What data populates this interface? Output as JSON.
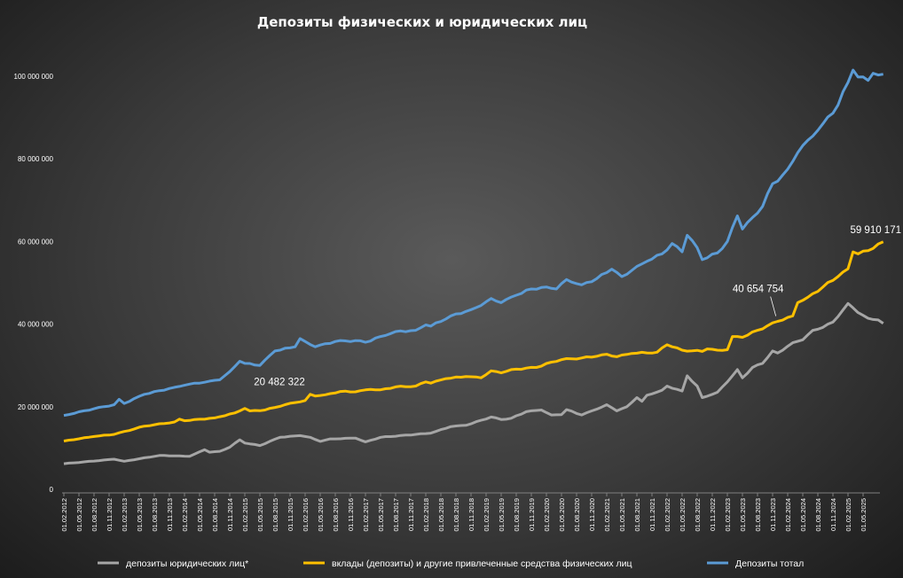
{
  "chart_data": {
    "type": "line",
    "title": "Депозиты физических и юридических лиц",
    "ylim": [
      0,
      100000000
    ],
    "yticks": [
      {
        "value": 0,
        "label": "0"
      },
      {
        "value": 20000000,
        "label": "20 000 000"
      },
      {
        "value": 40000000,
        "label": "40 000 000"
      },
      {
        "value": 60000000,
        "label": "60 000 000"
      },
      {
        "value": 80000000,
        "label": "80 000 000"
      },
      {
        "value": 100000000,
        "label": "100 000 000"
      }
    ],
    "grid": false,
    "legend": "bottom",
    "x_start": "2012-02-01",
    "n_months": 163,
    "xtick_labels": [
      "01.02.2012",
      "01.05.2012",
      "01.08.2012",
      "01.11.2012",
      "01.02.2013",
      "01.05.2013",
      "01.08.2013",
      "01.11.2013",
      "01.02.2014",
      "01.05.2014",
      "01.08.2014",
      "01.11.2014",
      "01.02.2015",
      "01.05.2015",
      "01.08.2015",
      "01.11.2015",
      "01.02.2016",
      "01.05.2016",
      "01.08.2016",
      "01.11.2016",
      "01.02.2017",
      "01.05.2017",
      "01.08.2017",
      "01.11.2017",
      "01.02.2018",
      "01.05.2018",
      "01.08.2018",
      "01.11.2018",
      "01.02.2019",
      "01.05.2019",
      "01.08.2019",
      "01.11.2019",
      "01.02.2020",
      "01.05.2020",
      "01.08.2020",
      "01.11.2020",
      "01.02.2021",
      "01.05.2021",
      "01.08.2021",
      "01.11.2021",
      "01.02.2022",
      "01.05.2022",
      "01.08.2022",
      "01.11.2022",
      "01.02.2023",
      "01.05.2023",
      "01.08.2023",
      "01.11.2023",
      "01.02.2024",
      "01.05.2024",
      "01.08.2024",
      "01.11.2024",
      "01.02.2025",
      "01.05.2025"
    ],
    "series": [
      {
        "name": "депозиты юридических лиц*",
        "color": "#a6a6a6",
        "anchors": [
          [
            "2012-02-01",
            6200000
          ],
          [
            "2012-12-01",
            7300000
          ],
          [
            "2013-02-01",
            6800000
          ],
          [
            "2013-09-01",
            8200000
          ],
          [
            "2014-03-01",
            8000000
          ],
          [
            "2014-06-01",
            9600000
          ],
          [
            "2014-07-01",
            9000000
          ],
          [
            "2014-09-01",
            9200000
          ],
          [
            "2014-11-01",
            10200000
          ],
          [
            "2015-01-01",
            12000000
          ],
          [
            "2015-02-01",
            11200000
          ],
          [
            "2015-05-01",
            10600000
          ],
          [
            "2015-09-01",
            12600000
          ],
          [
            "2016-01-01",
            13000000
          ],
          [
            "2016-03-01",
            12600000
          ],
          [
            "2016-05-01",
            11600000
          ],
          [
            "2016-07-01",
            12200000
          ],
          [
            "2016-12-01",
            12400000
          ],
          [
            "2017-02-01",
            11500000
          ],
          [
            "2017-05-01",
            12600000
          ],
          [
            "2017-12-01",
            13300000
          ],
          [
            "2018-03-01",
            13600000
          ],
          [
            "2018-07-01",
            15200000
          ],
          [
            "2018-10-01",
            15500000
          ],
          [
            "2019-03-01",
            17500000
          ],
          [
            "2019-05-01",
            16900000
          ],
          [
            "2019-07-01",
            17200000
          ],
          [
            "2019-10-01",
            18800000
          ],
          [
            "2020-01-01",
            19200000
          ],
          [
            "2020-03-01",
            18000000
          ],
          [
            "2020-05-01",
            18100000
          ],
          [
            "2020-06-01",
            19300000
          ],
          [
            "2020-09-01",
            18000000
          ],
          [
            "2020-12-01",
            19400000
          ],
          [
            "2021-02-01",
            20500000
          ],
          [
            "2021-04-01",
            19000000
          ],
          [
            "2021-06-01",
            20000000
          ],
          [
            "2021-08-01",
            22200000
          ],
          [
            "2021-09-01",
            21300000
          ],
          [
            "2021-10-01",
            22800000
          ],
          [
            "2022-01-01",
            24000000
          ],
          [
            "2022-02-01",
            25000000
          ],
          [
            "2022-05-01",
            23800000
          ],
          [
            "2022-06-01",
            27500000
          ],
          [
            "2022-08-01",
            25000000
          ],
          [
            "2022-09-01",
            22200000
          ],
          [
            "2022-12-01",
            23500000
          ],
          [
            "2023-02-01",
            26000000
          ],
          [
            "2023-04-01",
            29000000
          ],
          [
            "2023-05-01",
            27000000
          ],
          [
            "2023-07-01",
            29500000
          ],
          [
            "2023-09-01",
            30500000
          ],
          [
            "2023-11-01",
            33500000
          ],
          [
            "2023-12-01",
            33000000
          ],
          [
            "2024-03-01",
            35500000
          ],
          [
            "2024-05-01",
            36200000
          ],
          [
            "2024-07-01",
            38500000
          ],
          [
            "2024-09-01",
            39200000
          ],
          [
            "2024-11-01",
            40500000
          ],
          [
            "2025-02-01",
            45000000
          ],
          [
            "2025-04-01",
            42800000
          ],
          [
            "2025-06-01",
            41400000
          ],
          [
            "2025-08-01",
            41000000
          ],
          [
            "2025-09-01",
            40200000
          ]
        ]
      },
      {
        "name": "вклады (депозиты) и другие привлеченные средства физических лиц",
        "color": "#ffc000",
        "anchors": [
          [
            "2012-02-01",
            11700000
          ],
          [
            "2012-08-01",
            12800000
          ],
          [
            "2012-12-01",
            13300000
          ],
          [
            "2013-06-01",
            15300000
          ],
          [
            "2013-12-01",
            16300000
          ],
          [
            "2014-01-01",
            17000000
          ],
          [
            "2014-02-01",
            16600000
          ],
          [
            "2014-08-01",
            17300000
          ],
          [
            "2014-12-01",
            18500000
          ],
          [
            "2015-02-01",
            19600000
          ],
          [
            "2015-03-01",
            19000000
          ],
          [
            "2015-06-01",
            19200000
          ],
          [
            "2015-10-01",
            20500000
          ],
          [
            "2015-12-01",
            21000000
          ],
          [
            "2016-02-01",
            21500000
          ],
          [
            "2016-03-01",
            23000000
          ],
          [
            "2016-04-01",
            22600000
          ],
          [
            "2016-06-01",
            22900000
          ],
          [
            "2016-09-01",
            23700000
          ],
          [
            "2016-12-01",
            23600000
          ],
          [
            "2017-03-01",
            24200000
          ],
          [
            "2017-05-01",
            24100000
          ],
          [
            "2017-08-01",
            24800000
          ],
          [
            "2017-12-01",
            25000000
          ],
          [
            "2018-02-01",
            26000000
          ],
          [
            "2018-03-01",
            25700000
          ],
          [
            "2018-06-01",
            26800000
          ],
          [
            "2018-10-01",
            27300000
          ],
          [
            "2019-01-01",
            27000000
          ],
          [
            "2019-03-01",
            28700000
          ],
          [
            "2019-05-01",
            28200000
          ],
          [
            "2019-07-01",
            29000000
          ],
          [
            "2019-12-01",
            29500000
          ],
          [
            "2020-03-01",
            30800000
          ],
          [
            "2020-05-01",
            31400000
          ],
          [
            "2020-09-01",
            31800000
          ],
          [
            "2020-12-01",
            32200000
          ],
          [
            "2021-02-01",
            32700000
          ],
          [
            "2021-04-01",
            32100000
          ],
          [
            "2021-07-01",
            32900000
          ],
          [
            "2021-12-01",
            33200000
          ],
          [
            "2022-02-01",
            35000000
          ],
          [
            "2022-03-01",
            34500000
          ],
          [
            "2022-05-01",
            33700000
          ],
          [
            "2022-09-01",
            33400000
          ],
          [
            "2022-10-01",
            34000000
          ],
          [
            "2022-12-01",
            33700000
          ],
          [
            "2023-02-01",
            33800000
          ],
          [
            "2023-03-01",
            37000000
          ],
          [
            "2023-05-01",
            36800000
          ],
          [
            "2023-08-01",
            38500000
          ],
          [
            "2023-12-01",
            40655000
          ],
          [
            "2024-02-01",
            41600000
          ],
          [
            "2024-03-01",
            42000000
          ],
          [
            "2024-04-01",
            45200000
          ],
          [
            "2024-06-01",
            46500000
          ],
          [
            "2024-09-01",
            49000000
          ],
          [
            "2024-12-01",
            51500000
          ],
          [
            "2025-02-01",
            53400000
          ],
          [
            "2025-03-01",
            57500000
          ],
          [
            "2025-04-01",
            57000000
          ],
          [
            "2025-06-01",
            57800000
          ],
          [
            "2025-08-01",
            59400000
          ],
          [
            "2025-09-01",
            59910171
          ]
        ]
      },
      {
        "name": "Депозиты тотал",
        "color": "#5b9bd5",
        "anchors": [
          [
            "2012-02-01",
            17900000
          ],
          [
            "2012-08-01",
            19500000
          ],
          [
            "2012-12-01",
            20500000
          ],
          [
            "2013-01-01",
            21800000
          ],
          [
            "2013-02-01",
            20800000
          ],
          [
            "2013-06-01",
            23000000
          ],
          [
            "2013-12-01",
            24700000
          ],
          [
            "2014-02-01",
            25200000
          ],
          [
            "2014-07-01",
            26200000
          ],
          [
            "2014-09-01",
            26500000
          ],
          [
            "2014-11-01",
            28500000
          ],
          [
            "2015-01-01",
            31000000
          ],
          [
            "2015-02-01",
            30500000
          ],
          [
            "2015-05-01",
            30000000
          ],
          [
            "2015-08-01",
            33500000
          ],
          [
            "2015-12-01",
            34500000
          ],
          [
            "2016-01-01",
            36500000
          ],
          [
            "2016-02-01",
            35800000
          ],
          [
            "2016-04-01",
            34500000
          ],
          [
            "2016-08-01",
            35800000
          ],
          [
            "2016-12-01",
            36000000
          ],
          [
            "2017-02-01",
            35600000
          ],
          [
            "2017-05-01",
            37000000
          ],
          [
            "2017-08-01",
            38200000
          ],
          [
            "2017-12-01",
            38500000
          ],
          [
            "2018-02-01",
            39800000
          ],
          [
            "2018-03-01",
            39500000
          ],
          [
            "2018-07-01",
            42000000
          ],
          [
            "2018-11-01",
            43500000
          ],
          [
            "2019-01-01",
            44500000
          ],
          [
            "2019-03-01",
            46200000
          ],
          [
            "2019-05-01",
            45200000
          ],
          [
            "2019-08-01",
            47000000
          ],
          [
            "2019-11-01",
            48500000
          ],
          [
            "2020-02-01",
            49000000
          ],
          [
            "2020-04-01",
            48500000
          ],
          [
            "2020-06-01",
            50800000
          ],
          [
            "2020-09-01",
            49500000
          ],
          [
            "2020-12-01",
            51000000
          ],
          [
            "2021-03-01",
            53300000
          ],
          [
            "2021-05-01",
            51500000
          ],
          [
            "2021-07-01",
            53000000
          ],
          [
            "2021-10-01",
            55200000
          ],
          [
            "2022-01-01",
            57000000
          ],
          [
            "2022-03-01",
            59500000
          ],
          [
            "2022-05-01",
            57500000
          ],
          [
            "2022-06-01",
            61500000
          ],
          [
            "2022-08-01",
            58500000
          ],
          [
            "2022-09-01",
            55600000
          ],
          [
            "2022-12-01",
            57200000
          ],
          [
            "2023-02-01",
            60000000
          ],
          [
            "2023-04-01",
            66200000
          ],
          [
            "2023-05-01",
            63000000
          ],
          [
            "2023-07-01",
            65800000
          ],
          [
            "2023-09-01",
            68500000
          ],
          [
            "2023-11-01",
            74000000
          ],
          [
            "2023-12-01",
            74600000
          ],
          [
            "2024-02-01",
            77500000
          ],
          [
            "2024-04-01",
            81500000
          ],
          [
            "2024-06-01",
            84500000
          ],
          [
            "2024-09-01",
            88500000
          ],
          [
            "2024-12-01",
            93000000
          ],
          [
            "2025-02-01",
            98500000
          ],
          [
            "2025-03-01",
            101500000
          ],
          [
            "2025-04-01",
            99800000
          ],
          [
            "2025-06-01",
            99000000
          ],
          [
            "2025-07-01",
            100700000
          ],
          [
            "2025-08-01",
            100300000
          ],
          [
            "2025-09-01",
            100500000
          ]
        ]
      }
    ],
    "annotations": [
      {
        "text": "20 482 322",
        "x": "2015-11-01",
        "y": 20482322
      },
      {
        "text": "40 654 754",
        "x": "2023-12-01",
        "y": 40654754
      },
      {
        "text": "59 910 171",
        "x": "2025-09-01",
        "y": 59910171
      }
    ]
  }
}
